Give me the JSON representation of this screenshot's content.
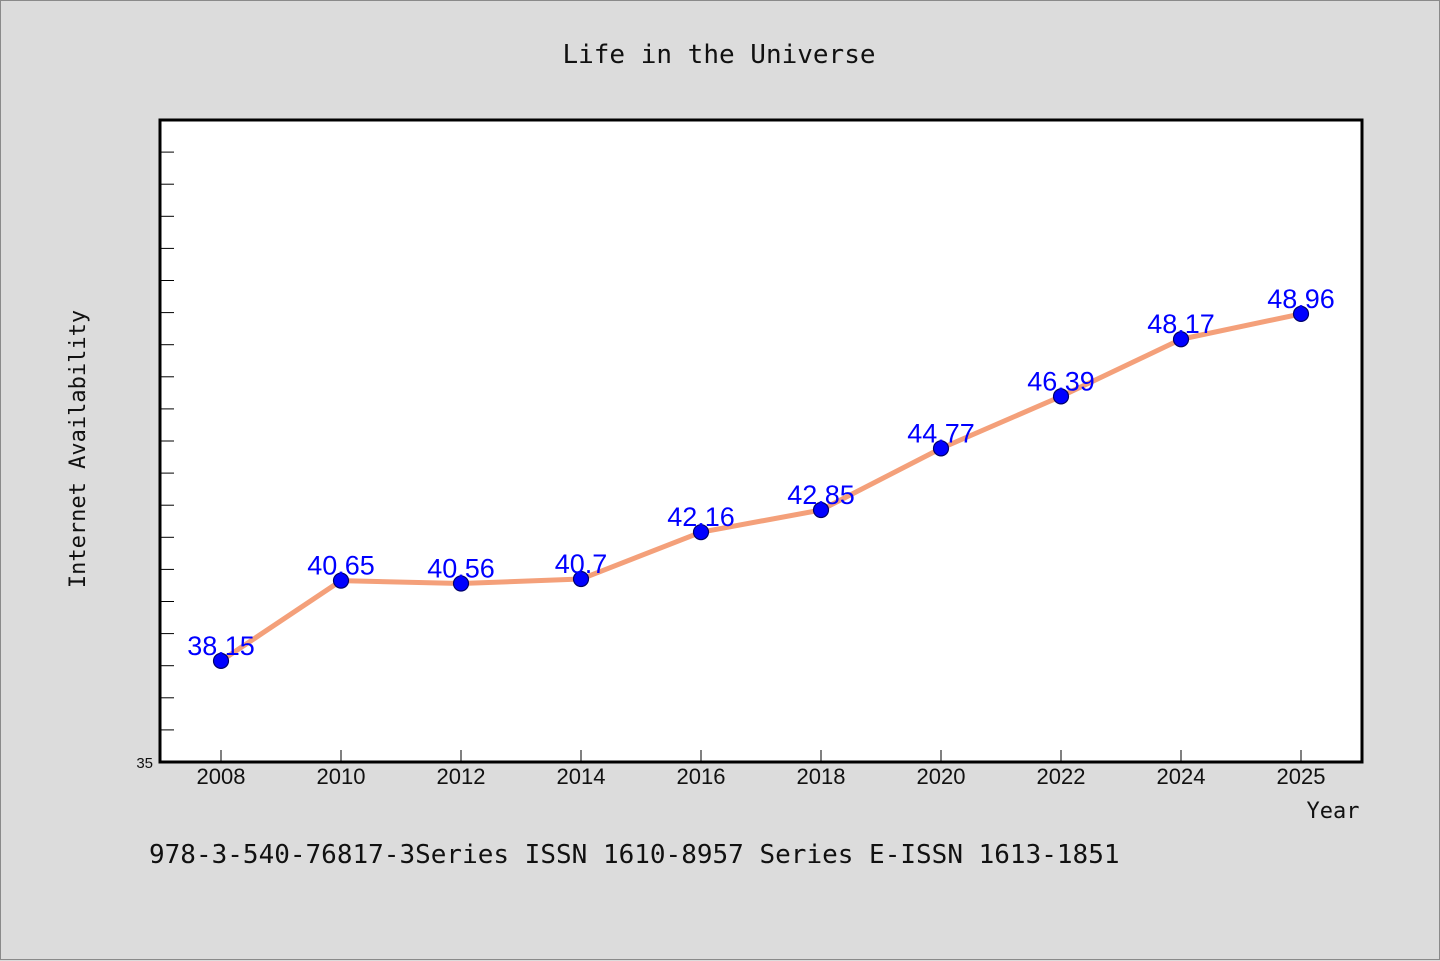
{
  "chart_data": {
    "type": "line",
    "title": "Life in the Universe",
    "xlabel": "Year",
    "ylabel": "Internet Availability",
    "categories": [
      "2008",
      "2010",
      "2012",
      "2014",
      "2016",
      "2018",
      "2020",
      "2022",
      "2024",
      "2025"
    ],
    "series": [
      {
        "values": [
          38.15,
          40.65,
          40.56,
          40.7,
          42.16,
          42.85,
          44.77,
          46.39,
          48.17,
          48.96
        ],
        "labels": [
          "38.15",
          "40.65",
          "40.56",
          "40.7",
          "42.16",
          "42.85",
          "44.77",
          "46.39",
          "48.17",
          "48.96"
        ]
      }
    ],
    "ylim": [
      35,
      55
    ],
    "y_min_label": "35",
    "grid": false,
    "line_color": "#f4a07a",
    "marker_color": "#0000ff",
    "label_color": "#0000ff",
    "plot_background": "#ffffff",
    "page_background": "#dcdcdc"
  },
  "footer": {
    "text": "978-3-540-76817-3Series ISSN 1610-8957 Series E-ISSN 1613-1851"
  }
}
